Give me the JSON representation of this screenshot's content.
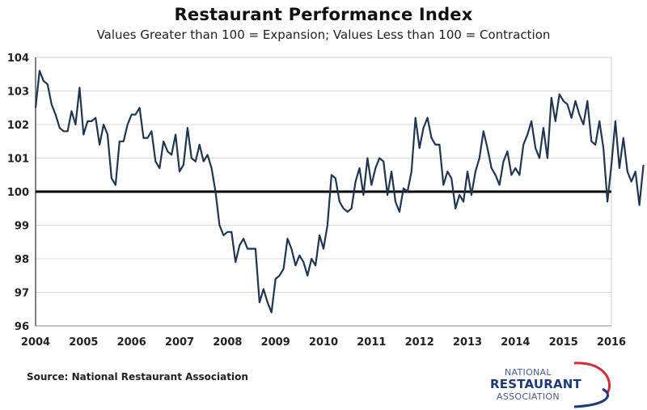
{
  "chart_data": {
    "type": "line",
    "title": "Restaurant Performance Index",
    "subtitle": "Values Greater than 100 = Expansion; Values Less than 100 = Contraction",
    "xlabel": "",
    "ylabel": "",
    "x_start": "2004-01",
    "x_frequency": "monthly",
    "xlim": [
      2004,
      2016.25
    ],
    "ylim": [
      96,
      104
    ],
    "y_ticks": [
      "96",
      "97",
      "98",
      "99",
      "100",
      "101",
      "102",
      "103",
      "104"
    ],
    "x_ticks": [
      "2004",
      "2005",
      "2006",
      "2007",
      "2008",
      "2009",
      "2010",
      "2011",
      "2012",
      "2013",
      "2014",
      "2015",
      "2016"
    ],
    "reference_line": 100,
    "grid": true,
    "legend": "none",
    "series": [
      {
        "name": "Restaurant Performance Index",
        "color": "#1f3552",
        "values": [
          102.5,
          103.6,
          103.3,
          103.2,
          102.6,
          102.3,
          101.9,
          101.8,
          101.8,
          102.4,
          102.0,
          103.1,
          101.7,
          102.1,
          102.1,
          102.2,
          101.4,
          102.0,
          101.7,
          100.4,
          100.2,
          101.5,
          101.5,
          102.0,
          102.3,
          102.3,
          102.5,
          101.6,
          101.6,
          101.8,
          100.9,
          100.7,
          101.5,
          101.2,
          101.1,
          101.7,
          100.6,
          100.8,
          101.9,
          101.0,
          100.9,
          101.4,
          100.9,
          101.1,
          100.7,
          100.0,
          99.0,
          98.7,
          98.8,
          98.8,
          97.9,
          98.4,
          98.6,
          98.3,
          98.3,
          98.3,
          96.7,
          97.1,
          96.7,
          96.4,
          97.4,
          97.5,
          97.7,
          98.6,
          98.3,
          97.8,
          98.1,
          97.9,
          97.5,
          98.0,
          97.8,
          98.7,
          98.3,
          99.0,
          100.5,
          100.4,
          99.7,
          99.5,
          99.4,
          99.5,
          100.3,
          100.7,
          99.9,
          101.0,
          100.2,
          100.7,
          101.0,
          100.9,
          99.9,
          100.6,
          99.7,
          99.4,
          100.1,
          100.0,
          100.6,
          102.2,
          101.3,
          101.9,
          102.2,
          101.6,
          101.4,
          101.4,
          100.2,
          100.6,
          100.4,
          99.5,
          99.9,
          99.7,
          100.6,
          99.9,
          100.6,
          101.0,
          101.8,
          101.3,
          100.7,
          100.5,
          100.2,
          100.9,
          101.2,
          100.5,
          100.7,
          100.5,
          101.4,
          101.7,
          102.1,
          101.3,
          101.0,
          101.9,
          101.0,
          102.8,
          102.1,
          102.9,
          102.7,
          102.6,
          102.2,
          102.7,
          102.3,
          102.0,
          102.7,
          101.5,
          101.4,
          102.1,
          101.3,
          99.7,
          100.8,
          102.1,
          100.7,
          101.6,
          100.6,
          100.3,
          100.6,
          99.6,
          100.8
        ]
      }
    ]
  },
  "footer": {
    "source": "Source: National Restaurant Association",
    "logo": {
      "line1": "NATIONAL",
      "line2": "RESTAURANT",
      "line3": "ASSOCIATION",
      "colors": {
        "text_dark": "#1f3a7a",
        "text_light": "#4a5a8c",
        "swoosh_red": "#d62b3a",
        "swoosh_blue": "#1f3a7a"
      }
    }
  }
}
